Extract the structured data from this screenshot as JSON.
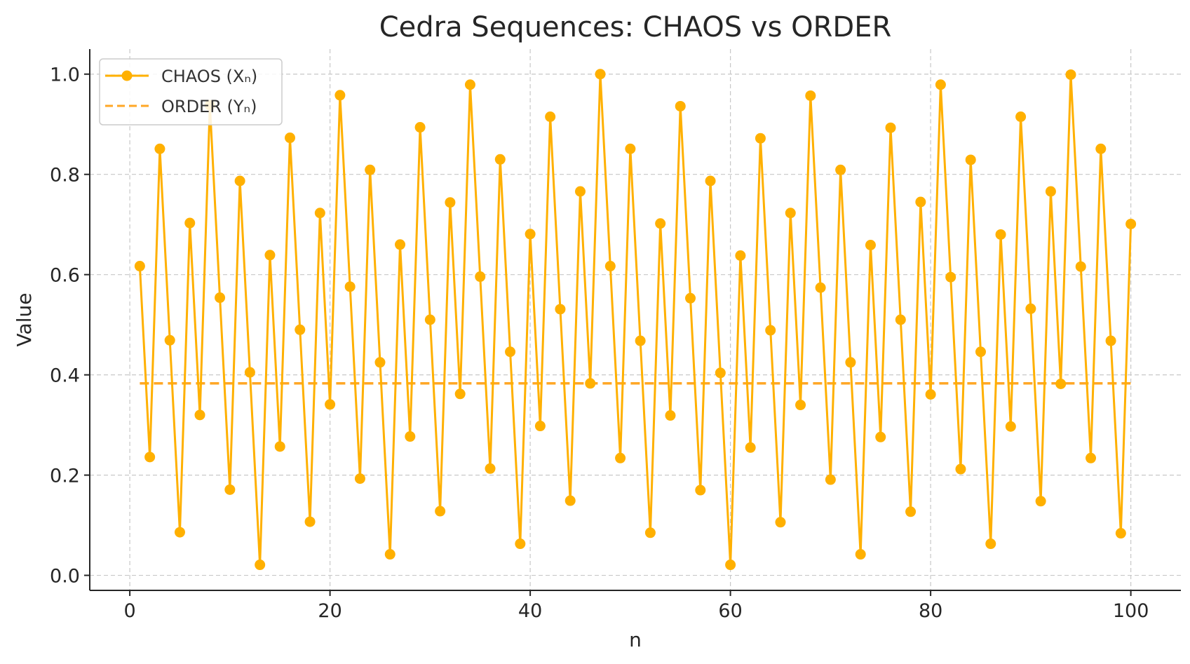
{
  "chart_data": {
    "type": "line",
    "title": "Cedra Sequences: CHAOS vs ORDER",
    "xlabel": "n",
    "ylabel": "Value",
    "xlim": [
      -4,
      105
    ],
    "ylim": [
      -0.03,
      1.05
    ],
    "xticks": [
      0,
      20,
      40,
      60,
      80,
      100
    ],
    "yticks": [
      0.0,
      0.2,
      0.4,
      0.6,
      0.8,
      1.0
    ],
    "xtick_labels": [
      "0",
      "20",
      "40",
      "60",
      "80",
      "100"
    ],
    "ytick_labels": [
      "0.0",
      "0.2",
      "0.4",
      "0.6",
      "0.8",
      "1.0"
    ],
    "grid": true,
    "legend_position": "top-left",
    "colors": {
      "chaos": "#FFB000",
      "order": "#FFA726"
    },
    "series": [
      {
        "name": "CHAOS (Xₙ)",
        "style": "solid-line-with-markers",
        "x": [
          1,
          2,
          3,
          4,
          5,
          6,
          7,
          8,
          9,
          10,
          11,
          12,
          13,
          14,
          15,
          16,
          17,
          18,
          19,
          20,
          21,
          22,
          23,
          24,
          25,
          26,
          27,
          28,
          29,
          30,
          31,
          32,
          33,
          34,
          35,
          36,
          37,
          38,
          39,
          40,
          41,
          42,
          43,
          44,
          45,
          46,
          47,
          48,
          49,
          50,
          51,
          52,
          53,
          54,
          55,
          56,
          57,
          58,
          59,
          60,
          61,
          62,
          63,
          64,
          65,
          66,
          67,
          68,
          69,
          70,
          71,
          72,
          73,
          74,
          75,
          76,
          77,
          78,
          79,
          80,
          81,
          82,
          83,
          84,
          85,
          86,
          87,
          88,
          89,
          90,
          91,
          92,
          93,
          94,
          95,
          96,
          97,
          98,
          99,
          100
        ],
        "values": [
          0.617,
          0.236,
          0.851,
          0.469,
          0.086,
          0.703,
          0.32,
          0.938,
          0.554,
          0.171,
          0.787,
          0.405,
          0.021,
          0.639,
          0.257,
          0.873,
          0.49,
          0.107,
          0.723,
          0.341,
          0.958,
          0.576,
          0.193,
          0.809,
          0.425,
          0.042,
          0.66,
          0.277,
          0.894,
          0.51,
          0.128,
          0.744,
          0.362,
          0.979,
          0.596,
          0.213,
          0.83,
          0.446,
          0.063,
          0.681,
          0.298,
          0.915,
          0.531,
          0.149,
          0.766,
          0.383,
          1.0,
          0.617,
          0.234,
          0.851,
          0.468,
          0.085,
          0.702,
          0.319,
          0.936,
          0.553,
          0.17,
          0.787,
          0.404,
          0.021,
          0.638,
          0.255,
          0.872,
          0.489,
          0.106,
          0.723,
          0.34,
          0.957,
          0.574,
          0.191,
          0.809,
          0.425,
          0.042,
          0.659,
          0.276,
          0.893,
          0.51,
          0.127,
          0.745,
          0.361,
          0.979,
          0.595,
          0.212,
          0.829,
          0.446,
          0.063,
          0.68,
          0.297,
          0.915,
          0.532,
          0.148,
          0.766,
          0.382,
          0.999,
          0.616,
          0.234,
          0.851,
          0.468,
          0.084,
          0.701
        ]
      },
      {
        "name": "ORDER (Yₙ)",
        "style": "dashed-line",
        "x": [
          1,
          100
        ],
        "values": [
          0.383,
          0.383
        ]
      }
    ]
  }
}
